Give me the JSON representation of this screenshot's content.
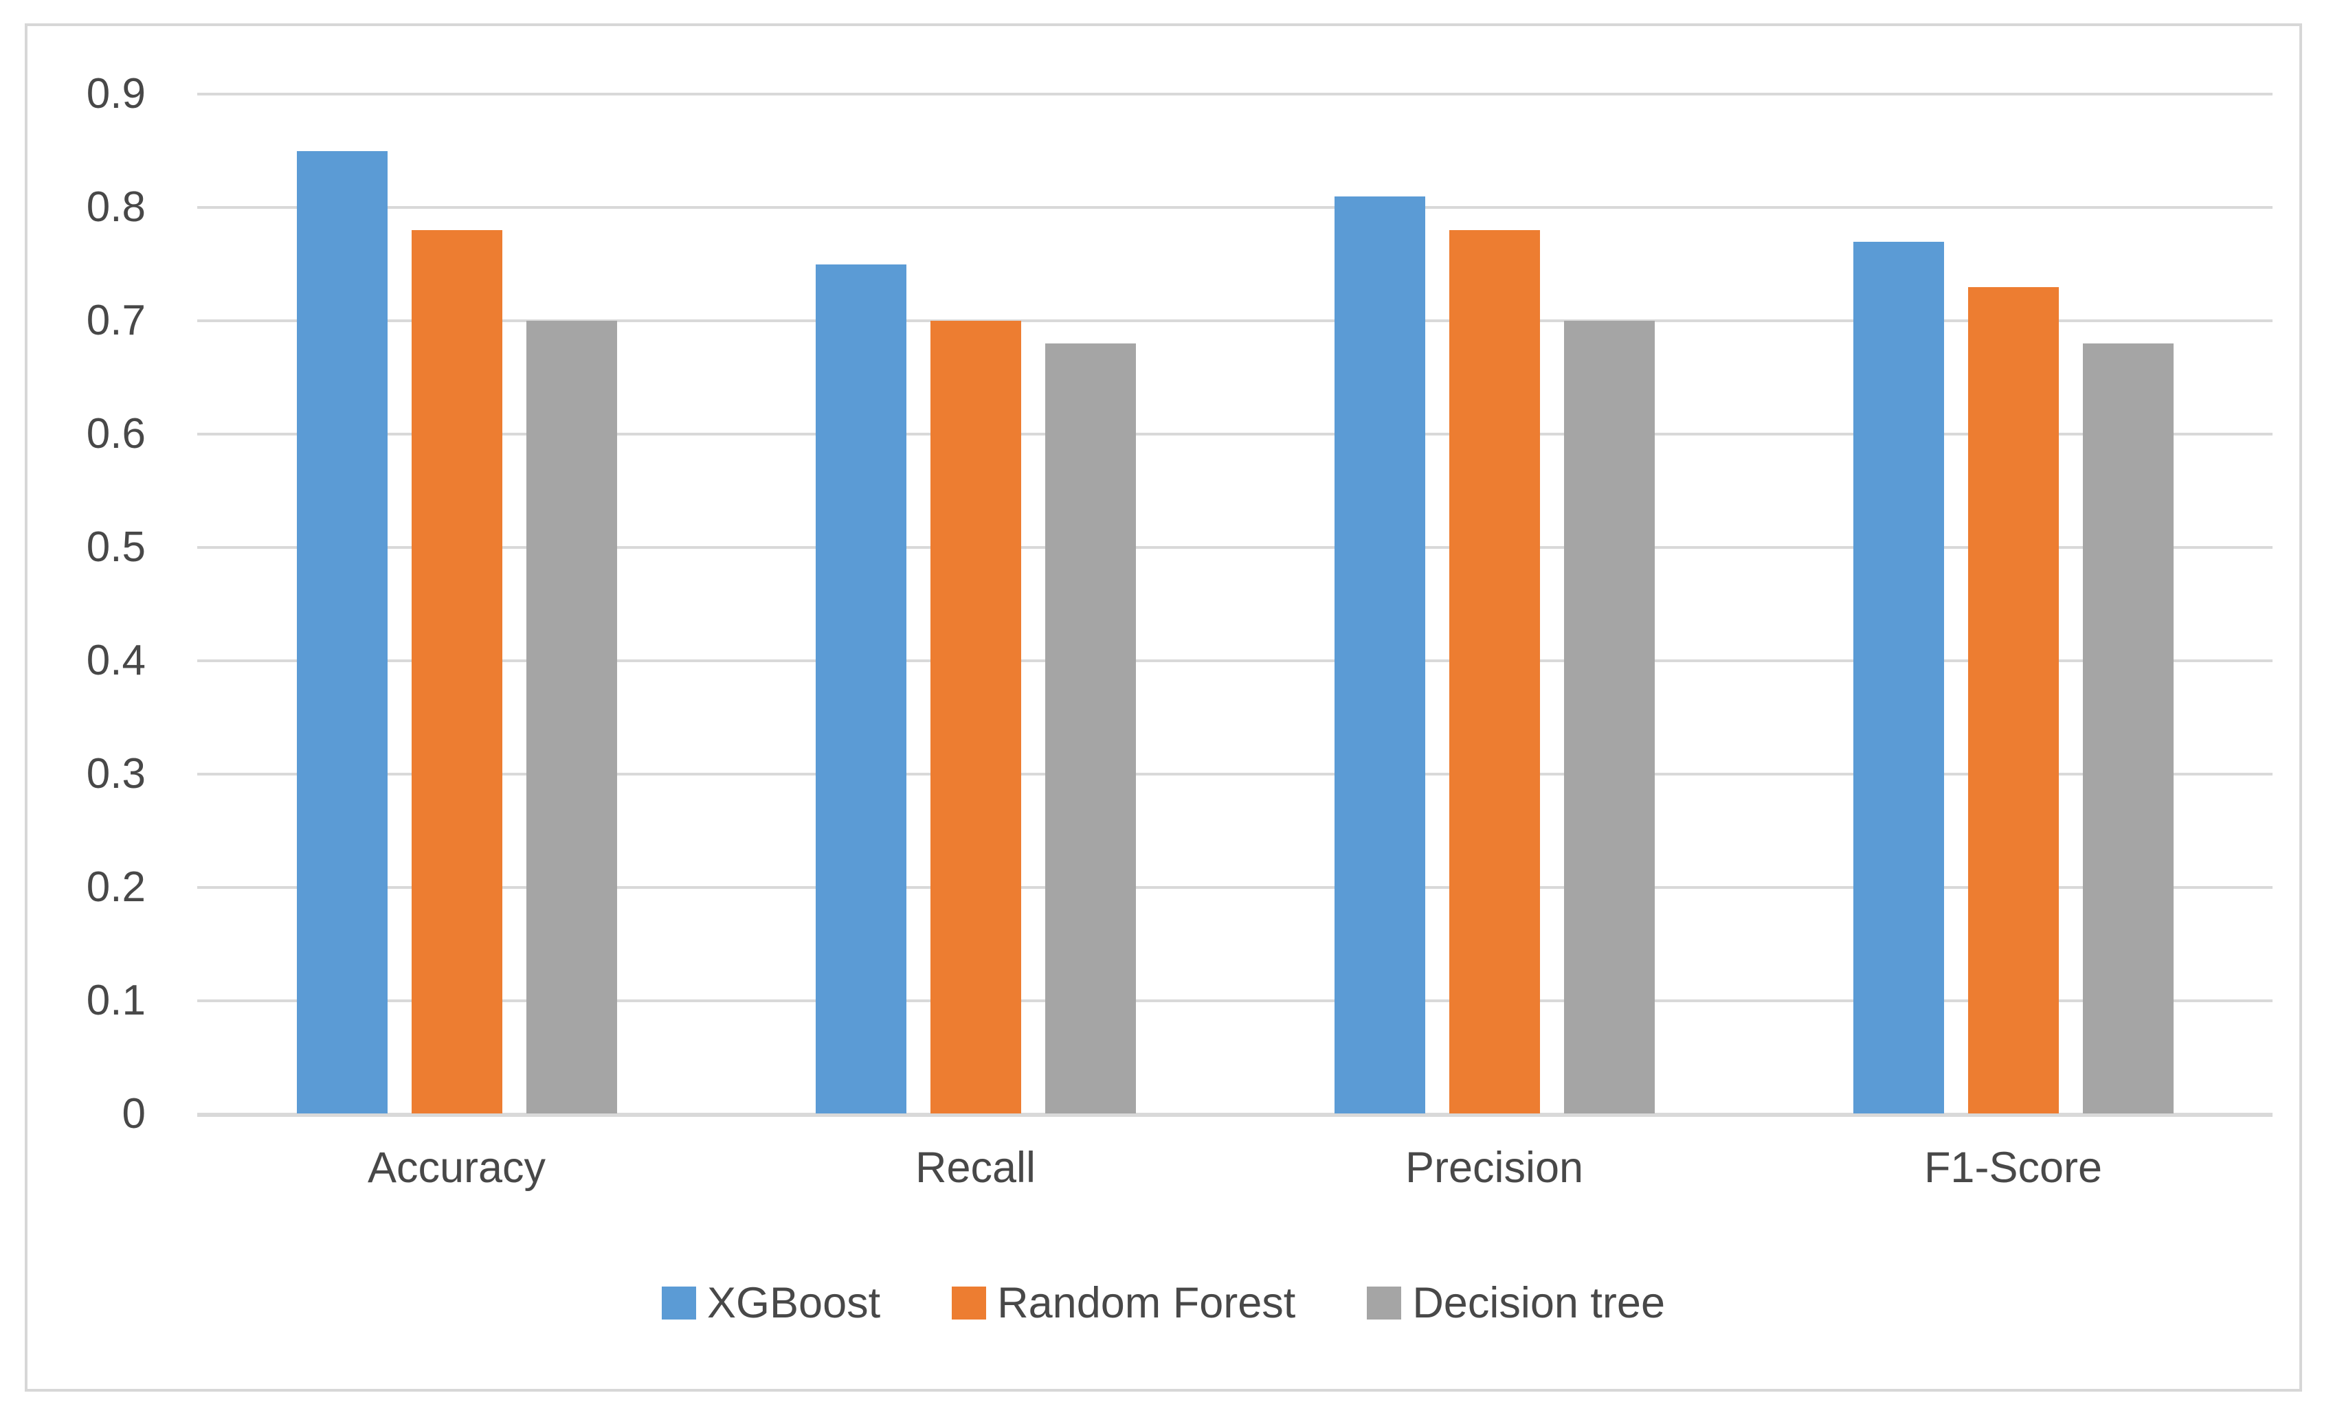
{
  "chart_data": {
    "type": "bar",
    "title": "",
    "xlabel": "",
    "ylabel": "",
    "categories": [
      "Accuracy",
      "Recall",
      "Precision",
      "F1-Score"
    ],
    "series": [
      {
        "name": "XGBoost",
        "color": "#5B9BD5",
        "values": [
          0.85,
          0.75,
          0.81,
          0.77
        ]
      },
      {
        "name": "Random Forest",
        "color": "#ED7D31",
        "values": [
          0.78,
          0.7,
          0.78,
          0.73
        ]
      },
      {
        "name": "Decision tree",
        "color": "#A5A5A5",
        "values": [
          0.7,
          0.68,
          0.7,
          0.68
        ]
      }
    ],
    "y_axis": {
      "min": 0,
      "max": 0.9,
      "tick_step": 0.1,
      "tick_labels": [
        "0",
        "0.1",
        "0.2",
        "0.3",
        "0.4",
        "0.5",
        "0.6",
        "0.7",
        "0.8",
        "0.9"
      ]
    },
    "grid": true,
    "gridline_color": "#D9D9D9",
    "frame_color": "#D7D7D7",
    "text_color": "#484848",
    "legend_position": "bottom"
  }
}
